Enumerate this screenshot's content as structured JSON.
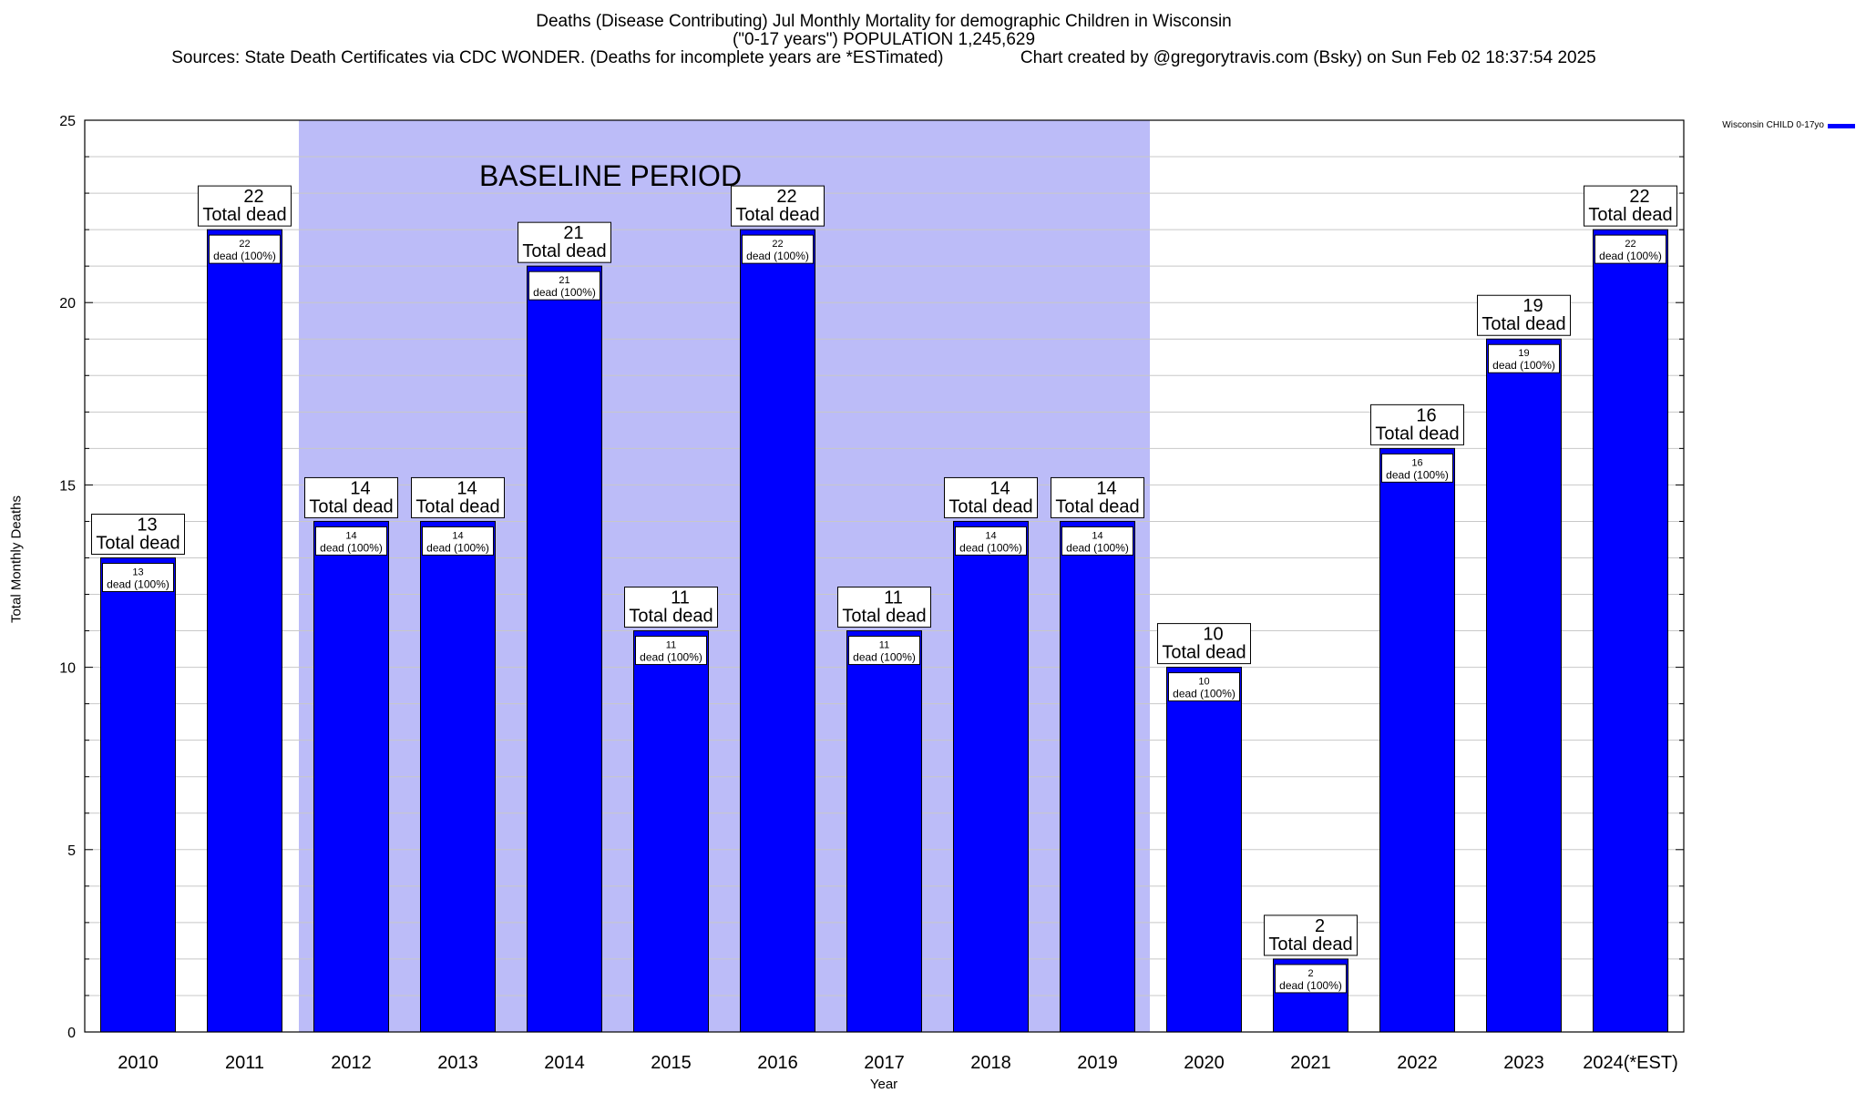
{
  "header": {
    "title_line1": "Deaths (Disease Contributing) Jul Monthly Mortality for demographic Children in Wisconsin",
    "title_line2": "(\"0-17 years\") POPULATION 1,245,629",
    "title_line3": "Sources: State Death Certificates via CDC WONDER. (Deaths for incomplete years are *ESTimated)                Chart created by @gregorytravis.com (Bsky) on Sun Feb 02 18:37:54 2025"
  },
  "legend": {
    "label": "Wisconsin CHILD 0-17yo",
    "swatch_color": "#0000ff"
  },
  "chart_data": {
    "type": "bar",
    "title": "Deaths (Disease Contributing) Jul Monthly Mortality for demographic Children in Wisconsin",
    "xlabel": "Year",
    "ylabel": "Total Monthly Deaths",
    "ylim": [
      0,
      25
    ],
    "y_ticks": [
      0,
      5,
      10,
      15,
      20,
      25
    ],
    "grid": true,
    "legend_position": "top-right, outside plot",
    "categories": [
      "2010",
      "2011",
      "2012",
      "2013",
      "2014",
      "2015",
      "2016",
      "2017",
      "2018",
      "2019",
      "2020",
      "2021",
      "2022",
      "2023",
      "2024(*EST)"
    ],
    "series": [
      {
        "name": "Wisconsin CHILD 0-17yo",
        "color": "#0000ff",
        "values": [
          13,
          22,
          14,
          14,
          21,
          11,
          22,
          11,
          14,
          14,
          10,
          2,
          16,
          19,
          22
        ]
      }
    ],
    "total_label_text": "Total dead",
    "inner_label_suffix": "dead (100%)",
    "baseline_period": {
      "label": "BASELINE PERIOD",
      "from_category": "2012",
      "to_category": "2019",
      "color": "#bcbcf8"
    }
  }
}
